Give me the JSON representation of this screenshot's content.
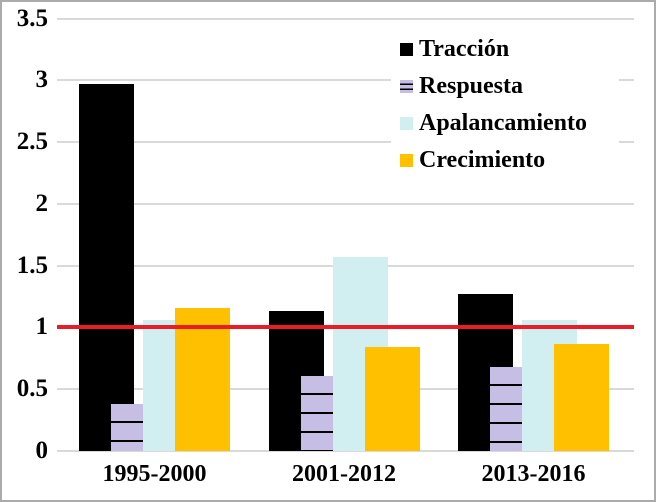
{
  "chart_data": {
    "type": "bar",
    "title": "",
    "xlabel": "",
    "ylabel": "",
    "categories": [
      "1995-2000",
      "2001-2012",
      "2013-2016"
    ],
    "series": [
      {
        "name": "Tracción",
        "color": "#000000",
        "pattern": "solid",
        "values": [
          2.97,
          1.13,
          1.27
        ]
      },
      {
        "name": "Respuesta",
        "color": "#C6BEE4",
        "pattern": "horizontal-stripes",
        "stripe_color": "#000000",
        "values": [
          0.38,
          0.61,
          0.68
        ]
      },
      {
        "name": "Apalancamiento",
        "color": "#D1EEF1",
        "pattern": "solid",
        "values": [
          1.06,
          1.57,
          1.06
        ]
      },
      {
        "name": "Crecimiento",
        "color": "#FFC000",
        "pattern": "solid",
        "values": [
          1.16,
          0.84,
          0.87
        ]
      }
    ],
    "ylim": [
      0,
      3.5
    ],
    "yticks": [
      0,
      0.5,
      1,
      1.5,
      2,
      2.5,
      3,
      3.5
    ],
    "ytick_labels": [
      "0",
      "0.5",
      "1",
      "1.5",
      "2",
      "2.5",
      "3",
      "3.5"
    ],
    "grid": true,
    "gridline_color": "#D9D9D9",
    "reference_line": {
      "value": 1,
      "color": "#E81D26"
    },
    "legend_position": "top-right",
    "bar_overlap": "series overlap ~40%, later series drawn in front"
  }
}
